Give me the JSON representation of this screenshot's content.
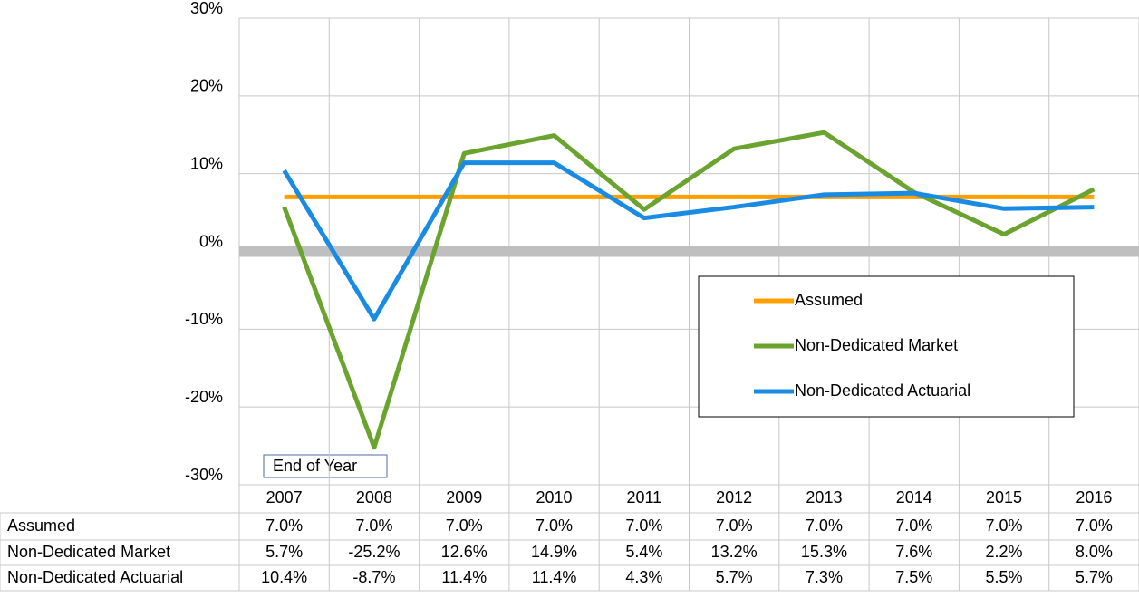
{
  "chart_data": {
    "type": "line",
    "x_label": "End of Year",
    "categories": [
      "2007",
      "2008",
      "2009",
      "2010",
      "2011",
      "2012",
      "2013",
      "2014",
      "2015",
      "2016"
    ],
    "series": [
      {
        "name": "Assumed",
        "color": "#ffa000",
        "values": [
          7.0,
          7.0,
          7.0,
          7.0,
          7.0,
          7.0,
          7.0,
          7.0,
          7.0,
          7.0
        ],
        "value_labels": [
          "7.0%",
          "7.0%",
          "7.0%",
          "7.0%",
          "7.0%",
          "7.0%",
          "7.0%",
          "7.0%",
          "7.0%",
          "7.0%"
        ]
      },
      {
        "name": "Non-Dedicated Market",
        "color": "#6aa32e",
        "values": [
          5.7,
          -25.2,
          12.6,
          14.9,
          5.4,
          13.2,
          15.3,
          7.6,
          2.2,
          8.0
        ],
        "value_labels": [
          "5.7%",
          "-25.2%",
          "12.6%",
          "14.9%",
          "5.4%",
          "13.2%",
          "15.3%",
          "7.6%",
          "2.2%",
          "8.0%"
        ]
      },
      {
        "name": "Non-Dedicated Actuarial",
        "color": "#1a8be3",
        "values": [
          10.4,
          -8.7,
          11.4,
          11.4,
          4.3,
          5.7,
          7.3,
          7.5,
          5.5,
          5.7
        ],
        "value_labels": [
          "10.4%",
          "-8.7%",
          "11.4%",
          "11.4%",
          "4.3%",
          "5.7%",
          "7.3%",
          "7.5%",
          "5.5%",
          "5.7%"
        ]
      }
    ],
    "ylim": [
      -30,
      30
    ],
    "yticks": [
      {
        "value": -30,
        "label": "-30%"
      },
      {
        "value": -20,
        "label": "-20%"
      },
      {
        "value": -10,
        "label": "-10%"
      },
      {
        "value": 0,
        "label": "0%"
      },
      {
        "value": 10,
        "label": "10%"
      },
      {
        "value": 20,
        "label": "20%"
      },
      {
        "value": 30,
        "label": "30%"
      }
    ],
    "grid": true
  }
}
